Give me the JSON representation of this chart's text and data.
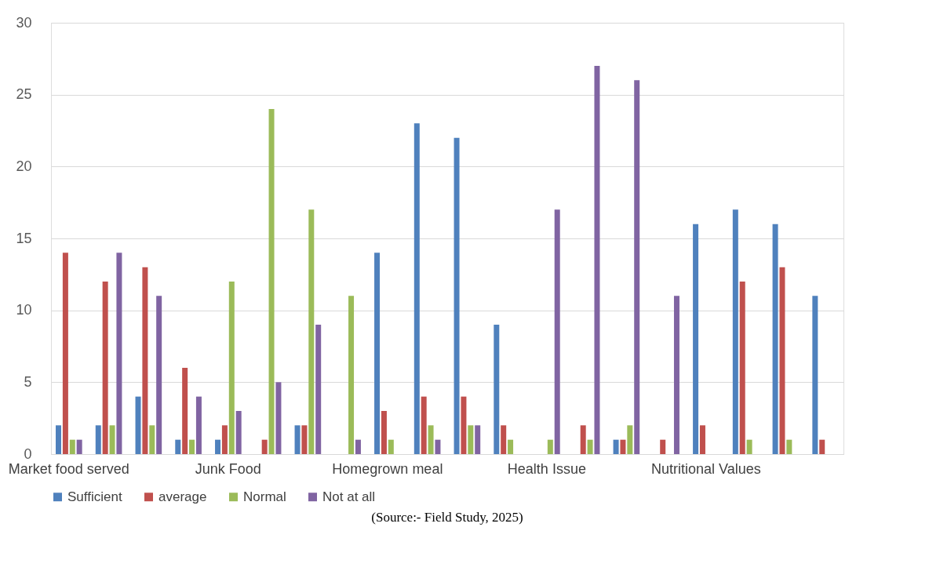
{
  "chart_data": {
    "type": "bar",
    "categories": [
      "Market food served",
      null,
      null,
      null,
      "Junk Food",
      null,
      null,
      null,
      "Homegrown meal",
      null,
      null,
      null,
      "Health Issue",
      null,
      null,
      null,
      "Nutritional Values",
      null,
      null,
      null
    ],
    "series": [
      {
        "name": "Sufficient",
        "color": "#4f81bd",
        "values": [
          2,
          2,
          4,
          1,
          1,
          0,
          2,
          0,
          14,
          23,
          22,
          9,
          0,
          0,
          1,
          0,
          16,
          17,
          16,
          11
        ]
      },
      {
        "name": "average",
        "color": "#c0504d",
        "values": [
          14,
          12,
          13,
          6,
          2,
          1,
          2,
          0,
          3,
          4,
          4,
          2,
          0,
          2,
          1,
          1,
          2,
          12,
          13,
          1
        ]
      },
      {
        "name": "Normal",
        "color": "#9bbb59",
        "values": [
          1,
          2,
          2,
          1,
          12,
          24,
          17,
          11,
          1,
          2,
          2,
          1,
          1,
          1,
          2,
          0,
          0,
          1,
          1,
          0
        ]
      },
      {
        "name": "Not at all",
        "color": "#8064a2",
        "values": [
          1,
          14,
          11,
          4,
          3,
          5,
          9,
          1,
          0,
          1,
          2,
          0,
          17,
          27,
          26,
          11,
          0,
          0,
          0,
          0
        ]
      }
    ],
    "ylim": [
      0,
      30
    ],
    "yticks": [
      0,
      5,
      10,
      15,
      20,
      25,
      30
    ],
    "grid": "y",
    "legend": "bottom",
    "annotations": [
      "(Source:- Field Study, 2025)"
    ]
  }
}
